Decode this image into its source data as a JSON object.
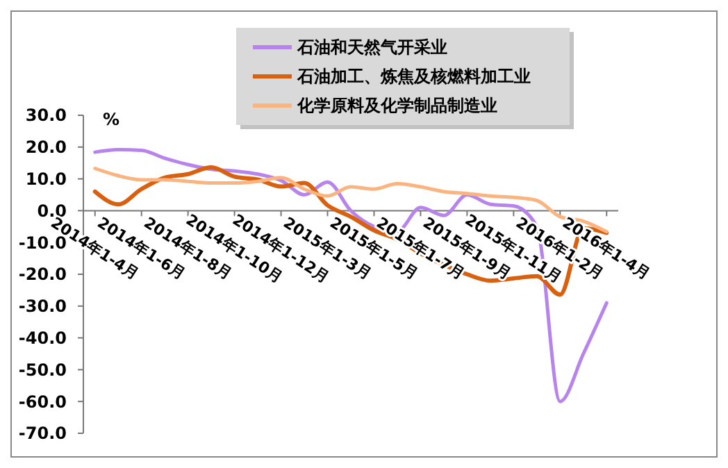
{
  "chart_data": {
    "type": "line",
    "ylabel": "%",
    "categories": [
      "2014年1-4月",
      null,
      "2014年1-6月",
      null,
      "2014年1-8月",
      null,
      "2014年1-10月",
      null,
      "2014年1-12月",
      null,
      "2015年1-3月",
      null,
      "2015年1-5月",
      null,
      "2015年1-7月",
      null,
      "2015年1-9月",
      null,
      "2015年1-11月",
      null,
      "2016年1-2月",
      null,
      "2016年1-4月"
    ],
    "series": [
      {
        "name": "石油和天然气开采业",
        "color": "#b784ec",
        "values": [
          18.4,
          19.2,
          19,
          16.5,
          14.5,
          13,
          12.5,
          11.5,
          9.5,
          5,
          9,
          0,
          -5,
          -6.5,
          1,
          -1.5,
          5,
          2,
          1.5,
          -5,
          -60,
          -45,
          -29
        ]
      },
      {
        "name": "石油加工、炼焦及核燃料加工业",
        "color": "#d9600f",
        "values": [
          6,
          2,
          6.8,
          10.4,
          11.5,
          13.6,
          10.7,
          9.8,
          7.6,
          8.7,
          1.7,
          -1.9,
          -6.2,
          -9,
          -13.4,
          -17,
          -20,
          -22,
          -21.3,
          -20.6,
          -26.4,
          -5.5,
          -7
        ]
      },
      {
        "name": "化学原料及化学制品制造业",
        "color": "#f9b47f",
        "values": [
          13.3,
          11,
          9.7,
          9.7,
          9.2,
          8.7,
          8.7,
          9.2,
          10.4,
          6.8,
          4.6,
          7.5,
          6.8,
          8.5,
          7.5,
          6,
          5.4,
          4.6,
          4.2,
          3.2,
          -1.9,
          -3.3,
          -6.6
        ]
      }
    ],
    "ylim": [
      -70,
      30
    ],
    "yticks": [
      {
        "value": 30,
        "label": "30.0"
      },
      {
        "value": 20,
        "label": "20.0"
      },
      {
        "value": 10,
        "label": "10.0"
      },
      {
        "value": 0,
        "label": "0.0"
      },
      {
        "value": -10,
        "label": "-10.0"
      },
      {
        "value": -20,
        "label": "-20.0"
      },
      {
        "value": -30,
        "label": "-30.0"
      },
      {
        "value": -40,
        "label": "-40.0"
      },
      {
        "value": -50,
        "label": "-50.0"
      },
      {
        "value": -60,
        "label": "-60.0"
      },
      {
        "value": -70,
        "label": "-70.0"
      }
    ],
    "legend": "top",
    "grid": false,
    "marker": "none",
    "line_style": "solid"
  }
}
